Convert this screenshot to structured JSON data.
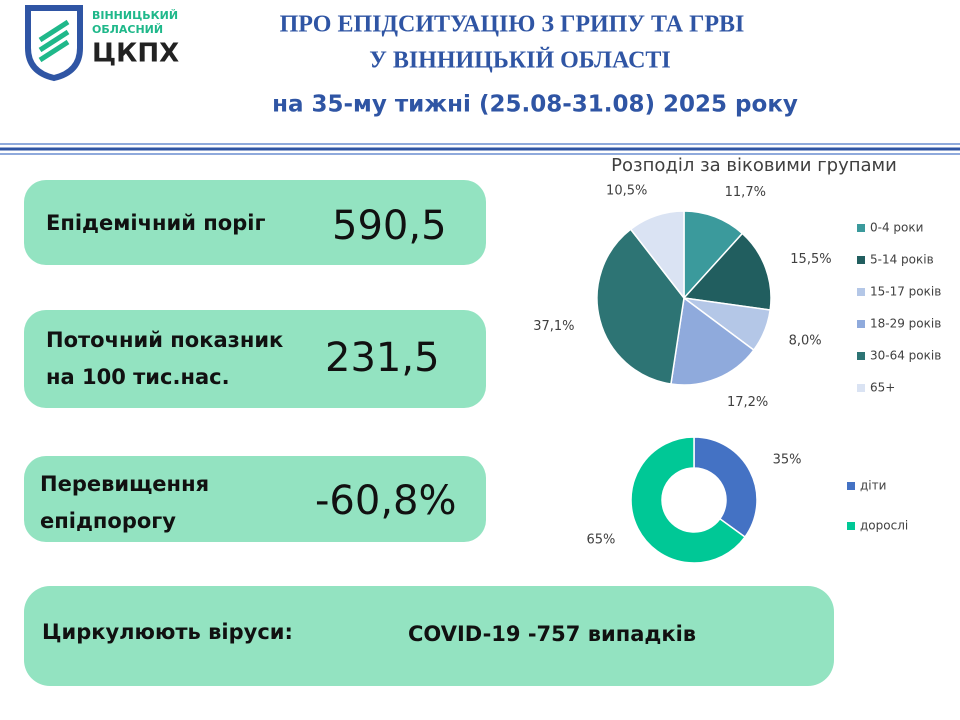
{
  "logo": {
    "line1": "ВІННИЦЬКИЙ",
    "line2": "ОБЛАСНИЙ",
    "name": "ЦКПХ"
  },
  "header": {
    "title": [
      "ПРО ЕПІДСИТУАЦІЮ З ГРИПУ ТА ГРВІ",
      "У ВІННИЦЬКІЙ ОБЛАСТІ"
    ],
    "subtitle": "на 35-му тижні (25.08-31.08) 2025 року"
  },
  "cards": [
    {
      "label": [
        "Епідемічний поріг"
      ],
      "value": "590,5"
    },
    {
      "label": [
        "Поточний показник",
        "на 100 тис.нас."
      ],
      "value": "231,5"
    },
    {
      "label": [
        "Перевищення",
        "епідпорогу"
      ],
      "value": "-60,8%"
    },
    {
      "label": [
        "Циркулюють віруси:"
      ],
      "value": "COVID-19 -757 випадків"
    }
  ],
  "chart_data": [
    {
      "type": "pie",
      "title": "Розподіл за віковими групами",
      "categories": [
        "0-4 роки",
        "5-14 років",
        "15-17 років",
        "18-29 років",
        "30-64 років",
        "65+"
      ],
      "values": [
        11.7,
        15.5,
        8.0,
        17.2,
        37.1,
        10.5
      ],
      "value_labels": [
        "11,7%",
        "15,5%",
        "8,0%",
        "17,2%",
        "37,1%",
        "10,5%"
      ],
      "colors": [
        "#3b9a9c",
        "#215e5f",
        "#b4c7e7",
        "#8faadc",
        "#2d7474",
        "#dae3f3"
      ]
    },
    {
      "type": "donut",
      "categories": [
        "діти",
        "дорослі"
      ],
      "values": [
        35,
        65
      ],
      "value_labels": [
        "35%",
        "65%"
      ],
      "colors": [
        "#4472c4",
        "#00c896"
      ]
    }
  ]
}
